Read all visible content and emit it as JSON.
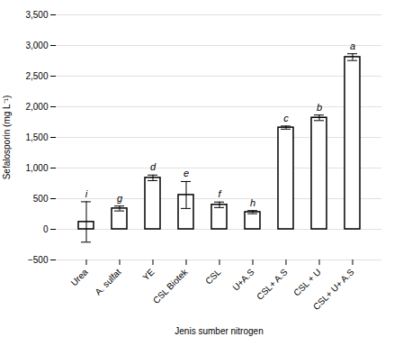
{
  "chart_data": {
    "type": "bar",
    "categories": [
      "Urea",
      "A. sulfat",
      "YE",
      "CSL Biotek",
      "CSL",
      "U+A.S",
      "CSL+ A.S",
      "CSL + U",
      "CSL+ U+ A.S"
    ],
    "values": [
      120,
      340,
      840,
      560,
      400,
      280,
      1660,
      1820,
      2810
    ],
    "errors": [
      330,
      40,
      45,
      220,
      45,
      25,
      25,
      45,
      55
    ],
    "annotations": [
      "i",
      "g",
      "d",
      "e",
      "f",
      "h",
      "c",
      "b",
      "a"
    ],
    "xlabel": "Jenis sumber nitrogen",
    "ylabel": "Sefalosporin (mg L⁻¹)",
    "color": "#ffffff",
    "ylim": [
      -500,
      3500
    ],
    "yticks": [
      -500,
      0,
      500,
      1000,
      1500,
      2000,
      2500,
      3000,
      3500
    ],
    "grid": true
  }
}
